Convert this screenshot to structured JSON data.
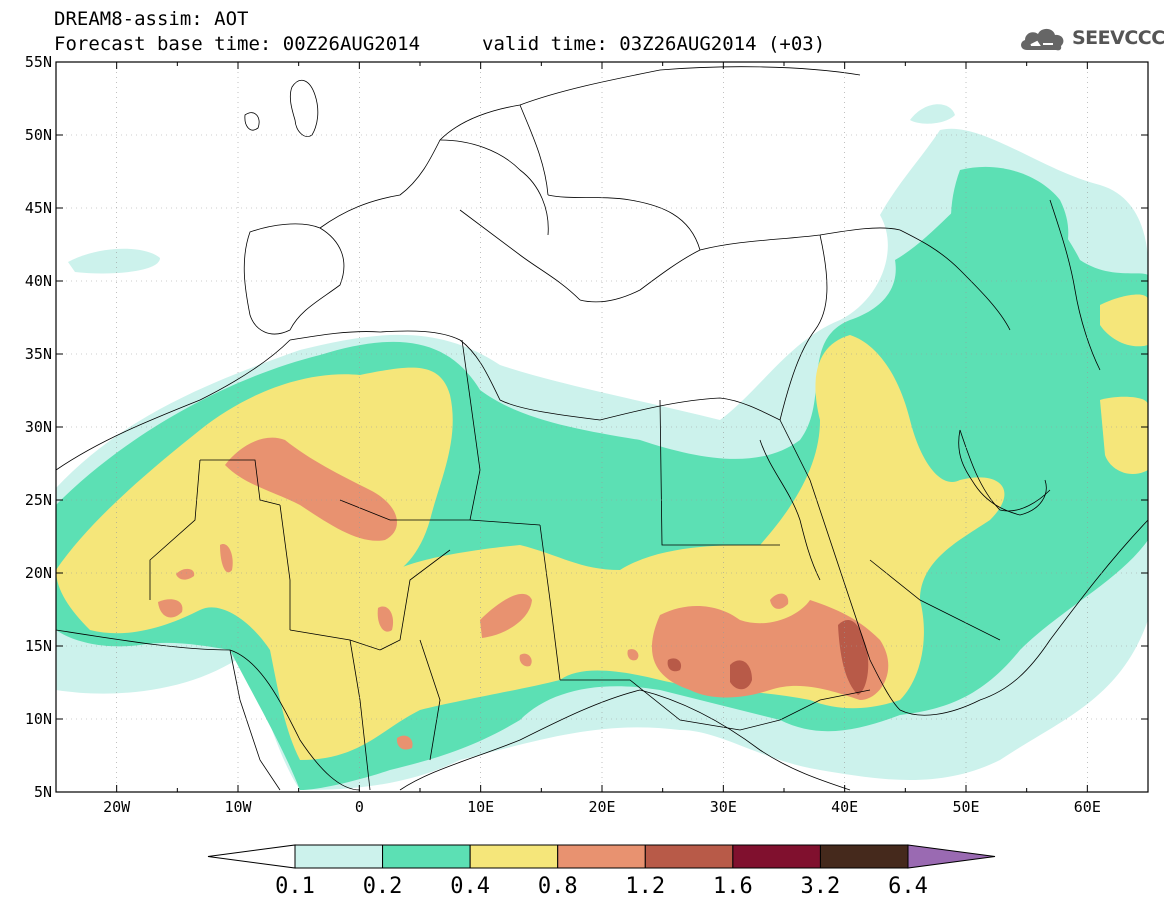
{
  "title": {
    "line1": "DREAM8-assim: AOT",
    "forecast": "Forecast base time: 00Z26AUG2014",
    "valid": "valid time: 03Z26AUG2014 (+03)"
  },
  "logo": {
    "text": "SEEVCCC",
    "icon": "cloud-icon",
    "color": "#555555"
  },
  "map": {
    "lon_range": [
      -25,
      65
    ],
    "lat_range": [
      5,
      55
    ],
    "lat_labels": [
      "55N",
      "50N",
      "45N",
      "40N",
      "35N",
      "30N",
      "25N",
      "20N",
      "15N",
      "10N",
      "5N"
    ],
    "lon_labels": [
      "20W",
      "10W",
      "0",
      "10E",
      "20E",
      "30E",
      "40E",
      "50E",
      "60E"
    ]
  },
  "colorbar": {
    "colors": [
      "#ccf2ec",
      "#5ce0b4",
      "#f5e67a",
      "#e89270",
      "#b85a48",
      "#80102e",
      "#45291c"
    ],
    "under_color": "#ffffff",
    "over_color": "#9a6ab2",
    "labels": [
      "0.1",
      "0.2",
      "0.4",
      "0.8",
      "1.2",
      "1.6",
      "3.2",
      "6.4"
    ]
  }
}
